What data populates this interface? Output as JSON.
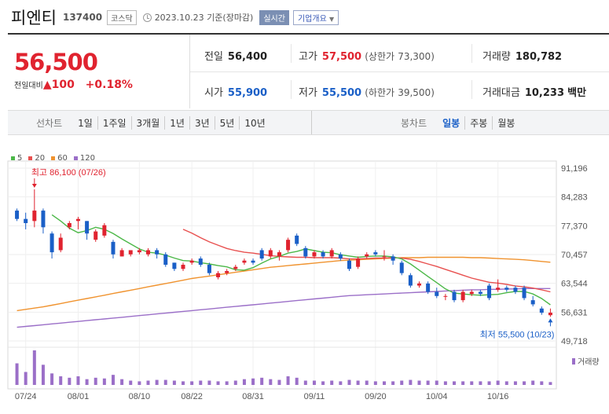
{
  "header": {
    "name": "피엔티",
    "code": "137400",
    "market": "코스닥",
    "date": "2023.10.23 기준(장마감)",
    "realtime_label": "실시간",
    "overview_label": "기업개요"
  },
  "price": {
    "current": "56,500",
    "change_label": "전일대비",
    "change_value": "100",
    "change_rate": "+0.18%"
  },
  "stats": {
    "prev_close_label": "전일",
    "prev_close": "56,400",
    "high_label": "고가",
    "high": "57,500",
    "upper_limit_label": "(상한가",
    "upper_limit": "73,300",
    "upper_limit_close": ")",
    "volume_label": "거래량",
    "volume": "180,782",
    "open_label": "시가",
    "open": "55,900",
    "low_label": "저가",
    "low": "55,500",
    "lower_limit_label": "(하한가",
    "lower_limit": "39,500",
    "lower_limit_close": ")",
    "amount_label": "거래대금",
    "amount": "10,233",
    "amount_unit": "백만"
  },
  "period_bar": {
    "line_label": "선차트",
    "line_items": [
      "1일",
      "1주일",
      "3개월",
      "1년",
      "3년",
      "5년",
      "10년"
    ],
    "candle_label": "봉차트",
    "candle_items": [
      "일봉",
      "주봉",
      "월봉"
    ],
    "candle_selected": 0
  },
  "colors": {
    "up": "#e0232f",
    "down": "#1a5fc7",
    "ma5": "#4cb848",
    "ma20": "#e8504f",
    "ma60": "#f0932f",
    "ma120": "#9b6fc8",
    "volume": "#9b6fc8"
  },
  "chart_data": {
    "type": "candlestick",
    "ma_legend": [
      {
        "name": "5",
        "color": "#4cb848"
      },
      {
        "name": "20",
        "color": "#e8504f"
      },
      {
        "name": "60",
        "color": "#f0932f"
      },
      {
        "name": "120",
        "color": "#9b6fc8"
      }
    ],
    "y_ticks": [
      "91,196",
      "84,283",
      "77,370",
      "70,457",
      "63,544",
      "56,631",
      "49,718"
    ],
    "y_tick_values": [
      91196,
      84283,
      77370,
      70457,
      63544,
      56631,
      49718
    ],
    "ylim": [
      49718,
      91196
    ],
    "x_ticks": [
      "07/24",
      "08/01",
      "08/10",
      "08/22",
      "08/31",
      "09/11",
      "09/20",
      "10/04",
      "10/16"
    ],
    "x_tick_index": [
      1,
      7,
      14,
      20,
      27,
      34,
      41,
      48,
      55
    ],
    "volume_label": "거래량",
    "high_annotation": "최고 86,100 (07/26)",
    "high_index": 2,
    "low_annotation": "최저 55,500 (10/23)",
    "low_index": 61,
    "candles": [
      [
        81000,
        79000,
        81500,
        78500
      ],
      [
        79000,
        78000,
        80500,
        76500
      ],
      [
        78500,
        81000,
        86100,
        77000
      ],
      [
        81000,
        77000,
        81500,
        75500
      ],
      [
        75500,
        71000,
        76000,
        69500
      ],
      [
        71500,
        74500,
        75500,
        71000
      ],
      [
        77000,
        78000,
        78500,
        76500
      ],
      [
        78500,
        79000,
        79500,
        76500
      ],
      [
        78500,
        75500,
        78500,
        74000
      ],
      [
        74000,
        76000,
        76500,
        73500
      ],
      [
        75000,
        77500,
        78000,
        74500
      ],
      [
        73500,
        70500,
        74000,
        69500
      ],
      [
        70000,
        71500,
        72000,
        70000
      ],
      [
        70500,
        71500,
        71500,
        70000
      ],
      [
        71000,
        71500,
        72000,
        70500
      ],
      [
        70500,
        71500,
        72000,
        70000
      ],
      [
        71500,
        70500,
        72000,
        69500
      ],
      [
        70500,
        68000,
        71000,
        67500
      ],
      [
        68500,
        67000,
        68500,
        66500
      ],
      [
        67000,
        68000,
        68500,
        66500
      ],
      [
        68500,
        69000,
        69500,
        68000
      ],
      [
        69500,
        68000,
        70000,
        67500
      ],
      [
        68000,
        66000,
        68500,
        65500
      ],
      [
        65000,
        66000,
        66500,
        64500
      ],
      [
        66000,
        66500,
        67000,
        65500
      ],
      [
        67000,
        67500,
        68000,
        66500
      ],
      [
        68500,
        69000,
        69500,
        68000
      ],
      [
        69000,
        68500,
        69500,
        68000
      ],
      [
        71500,
        69500,
        72000,
        69000
      ],
      [
        70000,
        71500,
        72000,
        69500
      ],
      [
        70000,
        71000,
        71500,
        69000
      ],
      [
        71500,
        74000,
        74500,
        71000
      ],
      [
        75000,
        73000,
        75500,
        72500
      ],
      [
        72000,
        70000,
        72500,
        69500
      ],
      [
        70000,
        71000,
        71500,
        69500
      ],
      [
        71000,
        70000,
        71500,
        69500
      ],
      [
        70000,
        71500,
        72000,
        69500
      ],
      [
        70500,
        69500,
        71000,
        69000
      ],
      [
        69000,
        67000,
        69500,
        66500
      ],
      [
        67500,
        69500,
        70000,
        67000
      ],
      [
        70000,
        70500,
        71000,
        69500
      ],
      [
        71000,
        70500,
        71500,
        70000
      ],
      [
        70000,
        70000,
        71500,
        69000
      ],
      [
        70000,
        69000,
        70500,
        68000
      ],
      [
        68500,
        66000,
        69000,
        65500
      ],
      [
        65500,
        63000,
        66000,
        62500
      ],
      [
        63000,
        63500,
        64000,
        62500
      ],
      [
        63500,
        61500,
        64000,
        61000
      ],
      [
        61500,
        60500,
        62500,
        60000
      ],
      [
        60500,
        60500,
        61000,
        59500
      ],
      [
        61500,
        59500,
        62000,
        59000
      ],
      [
        59500,
        61500,
        62000,
        59000
      ],
      [
        61000,
        61500,
        62000,
        60500
      ],
      [
        61500,
        61000,
        62000,
        60500
      ],
      [
        63000,
        60000,
        63500,
        59500
      ],
      [
        62000,
        62500,
        64500,
        61500
      ],
      [
        62500,
        62000,
        63000,
        61500
      ],
      [
        62500,
        61500,
        63000,
        61000
      ],
      [
        62500,
        60000,
        63000,
        59500
      ],
      [
        59500,
        58500,
        60500,
        58000
      ],
      [
        57500,
        56500,
        58000,
        56000
      ],
      [
        55900,
        56500,
        57500,
        55500
      ]
    ],
    "volume": [
      30,
      18,
      48,
      28,
      16,
      12,
      10,
      12,
      8,
      10,
      9,
      14,
      8,
      6,
      5,
      6,
      7,
      7,
      6,
      5,
      5,
      6,
      6,
      5,
      5,
      6,
      8,
      9,
      10,
      8,
      7,
      12,
      10,
      6,
      6,
      5,
      6,
      5,
      7,
      6,
      6,
      5,
      5,
      5,
      6,
      7,
      6,
      6,
      6,
      5,
      5,
      5,
      5,
      5,
      5,
      6,
      5,
      5,
      5,
      6,
      5,
      4
    ],
    "ma5": [
      null,
      null,
      null,
      null,
      80000,
      78500,
      76800,
      75700,
      76200,
      77000,
      76500,
      75500,
      74200,
      73000,
      71800,
      71000,
      70800,
      70300,
      69600,
      69000,
      68900,
      68500,
      68200,
      67800,
      67500,
      66800,
      66700,
      67300,
      68400,
      69400,
      70000,
      70800,
      71200,
      71800,
      71400,
      71000,
      70900,
      70400,
      70100,
      69800,
      70000,
      70100,
      70100,
      69900,
      69400,
      68200,
      66700,
      65200,
      63700,
      62200,
      61200,
      61000,
      60800,
      60700,
      60800,
      60900,
      61300,
      61600,
      61600,
      61000,
      59900,
      58400
    ],
    "ma20": [
      null,
      null,
      null,
      null,
      null,
      null,
      null,
      null,
      null,
      null,
      null,
      null,
      null,
      null,
      null,
      null,
      null,
      null,
      null,
      76500,
      75600,
      74500,
      73500,
      72700,
      71900,
      71400,
      71000,
      70800,
      70500,
      70200,
      70000,
      69900,
      69800,
      69800,
      69700,
      69700,
      69700,
      69600,
      69400,
      69400,
      69500,
      69600,
      69600,
      69700,
      69600,
      69300,
      68800,
      68200,
      67600,
      66900,
      66200,
      65500,
      64800,
      64300,
      63800,
      63600,
      63300,
      62900,
      62700,
      62400,
      62000,
      61500
    ],
    "ma60": [
      57000,
      57300,
      57600,
      57900,
      58300,
      58700,
      59100,
      59500,
      59900,
      60300,
      60700,
      61100,
      61500,
      61900,
      62300,
      62700,
      63100,
      63500,
      63900,
      64300,
      64700,
      65000,
      65300,
      65600,
      65900,
      66200,
      66500,
      66800,
      67100,
      67400,
      67600,
      67800,
      68000,
      68200,
      68400,
      68600,
      68800,
      69000,
      69100,
      69200,
      69300,
      69400,
      69500,
      69600,
      69700,
      69700,
      69700,
      69800,
      69800,
      69800,
      69800,
      69800,
      69700,
      69700,
      69600,
      69500,
      69400,
      69300,
      69200,
      69000,
      68800,
      68600
    ],
    "ma120": [
      53000,
      53200,
      53400,
      53600,
      53800,
      54000,
      54200,
      54400,
      54600,
      54800,
      55000,
      55200,
      55400,
      55600,
      55800,
      56000,
      56200,
      56400,
      56600,
      56800,
      57000,
      57200,
      57400,
      57600,
      57800,
      58000,
      58200,
      58400,
      58600,
      58800,
      59000,
      59200,
      59400,
      59600,
      59800,
      60000,
      60200,
      60400,
      60600,
      60700,
      60800,
      60900,
      61000,
      61100,
      61200,
      61300,
      61400,
      61500,
      61600,
      61700,
      61800,
      61900,
      62000,
      62000,
      62100,
      62100,
      62200,
      62200,
      62300,
      62300,
      62300,
      62300
    ]
  }
}
